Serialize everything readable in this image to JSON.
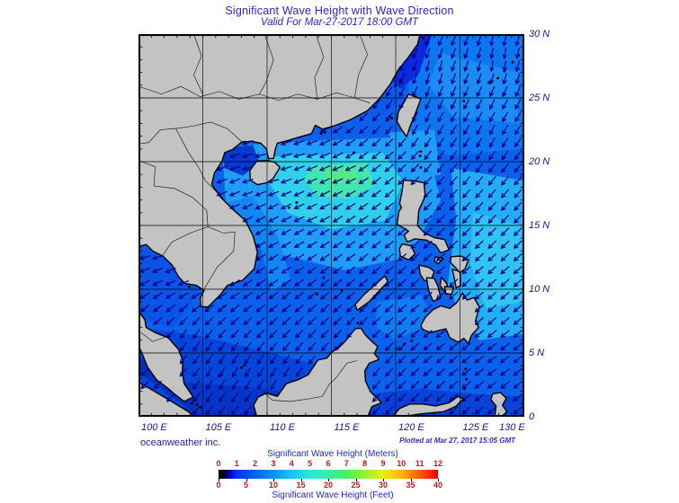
{
  "header": {
    "title": "Significant Wave Height with Wave Direction",
    "subtitle": "Valid For Mar-27-2017 18:00 GMT"
  },
  "footer": {
    "credit": "oceanweather inc.",
    "plotted": "Plotted at Mar 27, 2017 15:05 GMT"
  },
  "map": {
    "extent": {
      "lon_min": 100,
      "lon_max": 130,
      "lat_min": 0,
      "lat_max": 30
    },
    "grid_interval_deg": 5,
    "tick_interval_deg": 1,
    "lat_labels": [
      "30 N",
      "25 N",
      "20 N",
      "15 N",
      "10 N",
      "5 N",
      "0"
    ],
    "lon_labels": [
      "100 E",
      "105 E",
      "110 E",
      "115 E",
      "120 E",
      "125 E",
      "130 E"
    ],
    "land_color": "#c3c3c3",
    "coast_color": "#000000",
    "ocean_base_color": "#0a62ec",
    "arrow_color": "#000080",
    "wave_direction_note": "arrows show wave travel, predominantly toward SW (northeast monsoon)",
    "wave_field": [
      {
        "name": "pacific-ne",
        "color": "#0d76f1",
        "poly": [
          [
            121,
            30
          ],
          [
            130,
            30
          ],
          [
            130,
            21
          ],
          [
            124,
            20.5
          ],
          [
            121,
            22.5
          ]
        ]
      },
      {
        "name": "pacific-light",
        "color": "#1a8cf3",
        "poly": [
          [
            123.5,
            28.5
          ],
          [
            129.5,
            27
          ],
          [
            129.5,
            23
          ],
          [
            124.5,
            23.5
          ],
          [
            122.5,
            26
          ]
        ]
      },
      {
        "name": "north-scs-light",
        "color": "#1e9ef6",
        "poly": [
          [
            106.5,
            21.2
          ],
          [
            113,
            21.6
          ],
          [
            120,
            21.9
          ],
          [
            122.5,
            21
          ],
          [
            123.5,
            17
          ],
          [
            121,
            12.5
          ],
          [
            116,
            11.5
          ],
          [
            110,
            13
          ],
          [
            106.8,
            16.5
          ]
        ]
      },
      {
        "name": "luzon-strait",
        "color": "#1e9ef6",
        "poly": [
          [
            119.5,
            22.3
          ],
          [
            123,
            22.5
          ],
          [
            123.5,
            19
          ],
          [
            120.5,
            18.5
          ]
        ]
      },
      {
        "name": "viet-coast",
        "color": "#1286f3",
        "poly": [
          [
            106.8,
            16.8
          ],
          [
            109.6,
            13
          ],
          [
            110.3,
            9.8
          ],
          [
            111.8,
            10.8
          ],
          [
            110.9,
            14
          ],
          [
            108.9,
            17.3
          ]
        ]
      },
      {
        "name": "east-philippines",
        "color": "#22aef5",
        "poly": [
          [
            124.3,
            19.5
          ],
          [
            130,
            18.5
          ],
          [
            130,
            6.5
          ],
          [
            126.5,
            6
          ],
          [
            124,
            10
          ],
          [
            124.7,
            15.5
          ]
        ]
      },
      {
        "name": "east-ph-light",
        "color": "#2fc4f2",
        "poly": [
          [
            126,
            16
          ],
          [
            129.8,
            15
          ],
          [
            129.8,
            9
          ],
          [
            127,
            8.5
          ],
          [
            125.8,
            12
          ]
        ]
      },
      {
        "name": "sulu-light",
        "color": "#0f7df2",
        "poly": [
          [
            118.5,
            9
          ],
          [
            122,
            9.5
          ],
          [
            123,
            7.5
          ],
          [
            120,
            6
          ],
          [
            118.5,
            7
          ]
        ]
      },
      {
        "name": "scs-cyan",
        "color": "#2fd0ea",
        "poly": [
          [
            110.3,
            20.4
          ],
          [
            119,
            20.7
          ],
          [
            120.6,
            18.4
          ],
          [
            119.2,
            15.4
          ],
          [
            115,
            14.7
          ],
          [
            111.6,
            16
          ],
          [
            110,
            18.6
          ]
        ]
      },
      {
        "name": "scs-green",
        "color": "#3fe7ae",
        "poly": [
          [
            113.4,
            19.7
          ],
          [
            117.7,
            19.9
          ],
          [
            118.4,
            18.2
          ],
          [
            116.4,
            17.1
          ],
          [
            114,
            17.3
          ],
          [
            112.9,
            18.5
          ]
        ]
      },
      {
        "name": "scs-green-core",
        "color": "#54ea8c",
        "poly": [
          [
            114.4,
            19.35
          ],
          [
            116.9,
            19.4
          ],
          [
            117,
            18.4
          ],
          [
            114.9,
            18.3
          ]
        ]
      },
      {
        "name": "south-dark",
        "color": "#0546da",
        "poly": [
          [
            100,
            7
          ],
          [
            104.5,
            6.4
          ],
          [
            109.5,
            5.2
          ],
          [
            113.5,
            4.2
          ],
          [
            117.5,
            2.2
          ],
          [
            118,
            0
          ],
          [
            100,
            0
          ]
        ]
      },
      {
        "name": "celebes-south",
        "color": "#0643d6",
        "poly": [
          [
            118,
            1.8
          ],
          [
            122,
            2.2
          ],
          [
            126,
            1.8
          ],
          [
            130,
            1.6
          ],
          [
            130,
            0
          ],
          [
            118,
            0
          ]
        ]
      },
      {
        "name": "java-dark",
        "color": "#0336c8",
        "poly": [
          [
            103.6,
            2.7
          ],
          [
            109,
            2.3
          ],
          [
            114,
            1.5
          ],
          [
            117,
            0.9
          ],
          [
            117.2,
            0
          ],
          [
            103.6,
            0
          ]
        ]
      },
      {
        "name": "gulf-thailand",
        "color": "#0a54e8",
        "poly": [
          [
            99.9,
            13.3
          ],
          [
            103.9,
            12.7
          ],
          [
            104.9,
            10.1
          ],
          [
            102.7,
            7
          ],
          [
            100,
            7.7
          ]
        ]
      },
      {
        "name": "malacca-dark",
        "color": "#0231c2",
        "poly": [
          [
            100,
            4.8
          ],
          [
            102.3,
            3.1
          ],
          [
            104.7,
            1.3
          ],
          [
            104.3,
            0.3
          ],
          [
            101.6,
            2.3
          ],
          [
            100,
            3.5
          ]
        ]
      },
      {
        "name": "tonkin-dark",
        "color": "#0439d2",
        "poly": [
          [
            106.4,
            21.1
          ],
          [
            108.9,
            21.3
          ],
          [
            109.4,
            19.9
          ],
          [
            108.1,
            18.9
          ],
          [
            106.7,
            19.5
          ]
        ]
      },
      {
        "name": "china-coast-dark",
        "color": "#0a2ae0",
        "poly": [
          [
            119.3,
            26.6
          ],
          [
            121.5,
            29.9
          ],
          [
            122.8,
            29.9
          ],
          [
            121.8,
            26.9
          ],
          [
            120.4,
            25.7
          ]
        ]
      },
      {
        "name": "strait-dark",
        "color": "#0c5aec",
        "poly": [
          [
            117.2,
            23.8
          ],
          [
            119.8,
            25.9
          ],
          [
            120.8,
            25.2
          ],
          [
            118.5,
            23.3
          ]
        ]
      }
    ],
    "arrow_anchors": [
      [
        128,
        28,
        95
      ],
      [
        123,
        27,
        100
      ],
      [
        119,
        27,
        115
      ],
      [
        122,
        23,
        110
      ],
      [
        127,
        22,
        115
      ],
      [
        113,
        21,
        165
      ],
      [
        110,
        19.5,
        175
      ],
      [
        116,
        19,
        160
      ],
      [
        119.5,
        20,
        140
      ],
      [
        113,
        16,
        155
      ],
      [
        117,
        15,
        145
      ],
      [
        110,
        14,
        150
      ],
      [
        107,
        11,
        150
      ],
      [
        103.5,
        11,
        160
      ],
      [
        101.5,
        8,
        140
      ],
      [
        104,
        6,
        120
      ],
      [
        107,
        3.5,
        115
      ],
      [
        111,
        3,
        118
      ],
      [
        115,
        3,
        125
      ],
      [
        118.5,
        4,
        130
      ],
      [
        121,
        7,
        138
      ],
      [
        124,
        6,
        142
      ],
      [
        127,
        4,
        145
      ],
      [
        126,
        9,
        140
      ],
      [
        129,
        12,
        138
      ],
      [
        126.5,
        16,
        132
      ],
      [
        123,
        13,
        138
      ],
      [
        121.5,
        17.5,
        138
      ],
      [
        124,
        20,
        125
      ],
      [
        128,
        18,
        130
      ],
      [
        106,
        17,
        160
      ],
      [
        101,
        12.5,
        165
      ]
    ]
  },
  "legend": {
    "title_meters": "Significant Wave Height (Meters)",
    "title_feet": "Significant Wave Height (Feet)",
    "meters_ticks": [
      "0",
      "1",
      "2",
      "3",
      "4",
      "5",
      "6",
      "7",
      "8",
      "9",
      "10",
      "11",
      "12"
    ],
    "feet_ticks": [
      "0",
      "5",
      "10",
      "15",
      "20",
      "25",
      "30",
      "35",
      "40"
    ],
    "meters_max": 12,
    "feet_max": 40,
    "tick_color": "#cc1616",
    "stops": [
      [
        0,
        "#000000"
      ],
      [
        0.025,
        "#000020"
      ],
      [
        0.05,
        "#0000c0"
      ],
      [
        0.083,
        "#0030f0"
      ],
      [
        0.167,
        "#0063fa"
      ],
      [
        0.25,
        "#0795f8"
      ],
      [
        0.333,
        "#16c4f2"
      ],
      [
        0.417,
        "#2ae9d8"
      ],
      [
        0.5,
        "#35eea4"
      ],
      [
        0.583,
        "#46f160"
      ],
      [
        0.667,
        "#8ff52c"
      ],
      [
        0.75,
        "#e8ee1b"
      ],
      [
        0.833,
        "#ffb300"
      ],
      [
        0.917,
        "#ff5a00"
      ],
      [
        1,
        "#f00000"
      ]
    ]
  }
}
